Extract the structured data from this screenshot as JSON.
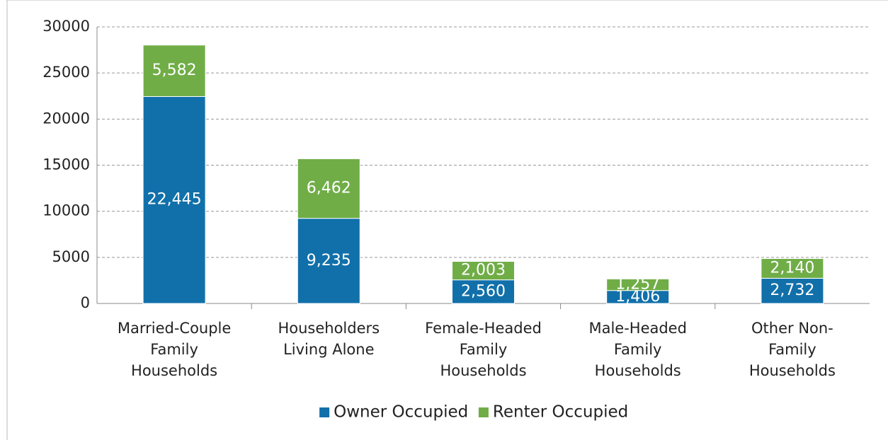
{
  "chart_data": {
    "type": "stacked_bar",
    "categories": [
      "Married-Couple Family Households",
      "Householders Living Alone",
      "Female-Headed Family Households",
      "Male-Headed Family Households",
      "Other Non-Family Households"
    ],
    "series": [
      {
        "name": "Owner Occupied",
        "color": "#1170aa",
        "values": [
          22445,
          9235,
          2560,
          1406,
          2732
        ],
        "value_labels": [
          "22,445",
          "9,235",
          "2,560",
          "1,406",
          "2,732"
        ]
      },
      {
        "name": "Renter Occupied",
        "color": "#70ad47",
        "values": [
          5582,
          6462,
          2003,
          1257,
          2140
        ],
        "value_labels": [
          "5,582",
          "6,462",
          "2,003",
          "1,257",
          "2,140"
        ]
      }
    ],
    "ylim": [
      0,
      30000
    ],
    "yticks": [
      0,
      5000,
      10000,
      15000,
      20000,
      25000,
      30000
    ],
    "grid": true,
    "legend": "bottom"
  }
}
